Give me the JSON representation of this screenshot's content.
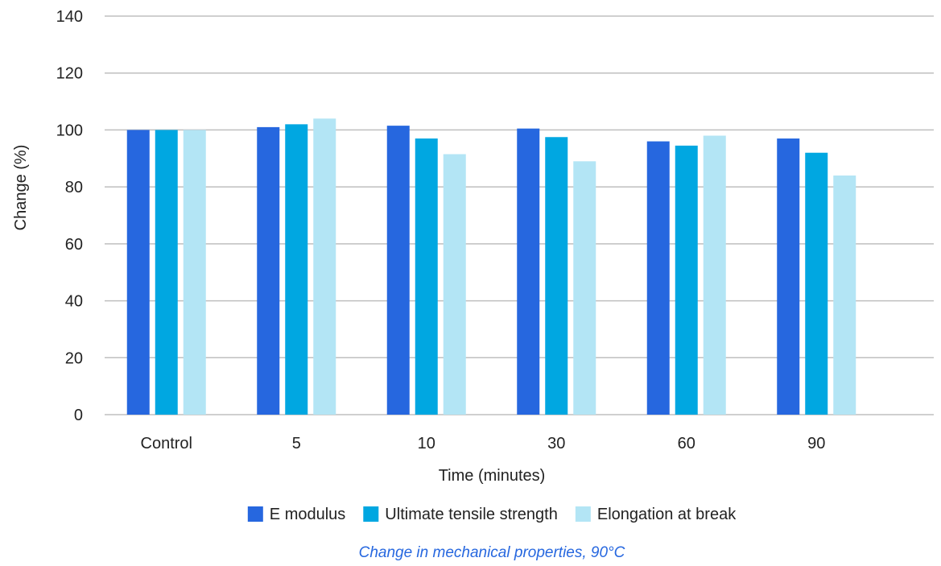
{
  "chart_data": {
    "type": "bar",
    "categories": [
      "Control",
      "5",
      "10",
      "30",
      "60",
      "90"
    ],
    "series": [
      {
        "name": "E modulus",
        "color": "#2667DF",
        "values": [
          100,
          101,
          101.5,
          100.5,
          96,
          97
        ]
      },
      {
        "name": "Ultimate tensile strength",
        "color": "#00A7E1",
        "values": [
          100,
          102,
          97,
          97.5,
          94.5,
          92
        ]
      },
      {
        "name": "Elongation at break",
        "color": "#B3E5F5",
        "values": [
          100,
          104,
          91.5,
          89,
          98,
          84
        ]
      }
    ],
    "xlabel": "Time (minutes)",
    "ylabel": "Change (%)",
    "ylim": [
      0,
      140
    ],
    "yticks": [
      0,
      20,
      40,
      60,
      80,
      100,
      120,
      140
    ],
    "grid": true,
    "legend_position": "bottom",
    "caption": "Change in mechanical properties, 90°C",
    "caption_color": "#2667DF",
    "grid_color": "#BFBFBF"
  }
}
